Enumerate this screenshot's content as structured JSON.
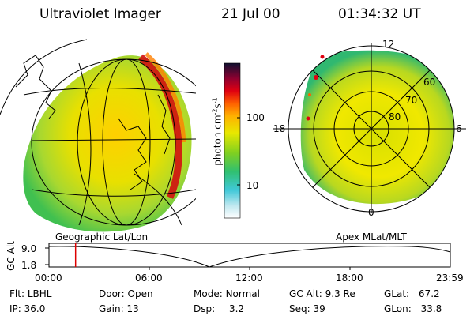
{
  "header": {
    "instrument": "Ultraviolet Imager",
    "date": "21 Jul 00",
    "time": "01:34:32 UT"
  },
  "left_panel": {
    "label": "Geographic Lat/Lon"
  },
  "right_panel": {
    "label": "Apex MLat/MLT",
    "mlt_labels": [
      "12",
      "18",
      "6",
      "0"
    ],
    "lat_labels": [
      "60",
      "70",
      "80"
    ]
  },
  "colorbar": {
    "title": "photon cm",
    "title_sup1": "-2",
    "title_mid": "s",
    "title_sup2": "-1",
    "tick_labels": [
      "100",
      "10"
    ],
    "scale": "log"
  },
  "altitude_plot": {
    "ylabel": "GC Alt",
    "yticks": [
      "9.0",
      "1.8"
    ],
    "xticks": [
      "00:00",
      "06:00",
      "12:00",
      "18:00",
      "23:59"
    ],
    "current_time_fraction": 0.0663,
    "marker_color": "#dd0000"
  },
  "info": {
    "filter": {
      "label": "Flt:",
      "value": "LBHL"
    },
    "ip": {
      "label": "IP:",
      "value": "36.0"
    },
    "door": {
      "label": "Door:",
      "value": "Open"
    },
    "gain": {
      "label": "Gain:",
      "value": "13"
    },
    "mode": {
      "label": "Mode:",
      "value": "Normal"
    },
    "dsp": {
      "label": "Dsp:",
      "value": "3.2"
    },
    "gc_alt": {
      "label": "GC Alt:",
      "value": "9.3 Re"
    },
    "seq": {
      "label": "Seq:",
      "value": "39"
    },
    "glat": {
      "label": "GLat:",
      "value": "67.2"
    },
    "glon": {
      "label": "GLon:",
      "value": "33.8"
    }
  }
}
